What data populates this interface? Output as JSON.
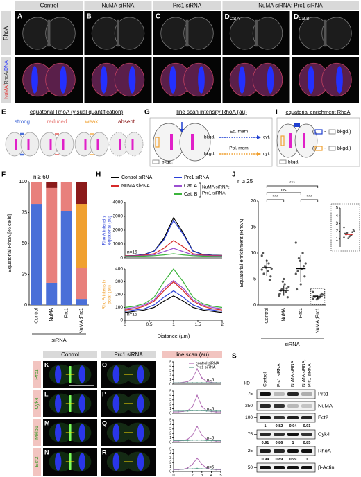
{
  "micrographs": {
    "columns": [
      {
        "letter": "A",
        "label": "Control"
      },
      {
        "letter": "B",
        "label": "NuMA siRNA"
      },
      {
        "letter": "C",
        "label": "Prc1 siRNA"
      },
      {
        "letter": "D",
        "sub": "Cat A"
      },
      {
        "letter": "D",
        "sub": "Cat B"
      }
    ],
    "group_label": "NuMA siRNA; Prc1 siRNA",
    "rows": [
      "RhoA",
      [
        "NuMA/",
        "RhoA/",
        "DNA"
      ]
    ]
  },
  "schemes": {
    "E": {
      "letter": "E",
      "title": "equatorial RhoA (visual quantification)"
    },
    "G": {
      "letter": "G",
      "title": "line scan intensity RhoA (au)",
      "labels": [
        "bkgd.",
        "Eq. mem",
        "cyt.",
        "bkgd.",
        "Pol. mem",
        "cyt.",
        "bkgd."
      ]
    },
    "I": {
      "letter": "I",
      "title": "equatorial enrichment RhoA",
      "labels": [
        "(",
        "- ",
        "bkgd.)",
        "(",
        "- ",
        "bkgd.)",
        "bkgd."
      ]
    }
  },
  "chart_data": [
    {
      "type": "bar",
      "letter": "F",
      "stacked": true,
      "annotation": "n ≥ 60",
      "ylabel": "Equatorial RhoA [% cells]",
      "xlabel": "siRNA",
      "categories": [
        "Control",
        "NuMA",
        "Prc1",
        "NuMA ;Prc1"
      ],
      "series": [
        {
          "name": "strong",
          "color": "#4a6fd8",
          "values": [
            82,
            18,
            76,
            5
          ]
        },
        {
          "name": "reduced",
          "color": "#e8807c",
          "values": [
            18,
            77,
            24,
            25
          ]
        },
        {
          "name": "weak",
          "color": "#f0a030",
          "values": [
            0,
            0,
            0,
            52
          ]
        },
        {
          "name": "absent",
          "color": "#8b1a1a",
          "values": [
            0,
            5,
            0,
            18
          ]
        }
      ],
      "ylim": [
        0,
        100
      ],
      "yticks": [
        0,
        25,
        50,
        75,
        100
      ]
    },
    {
      "type": "line",
      "letter": "H",
      "annotation": "n=15",
      "ylabel": [
        "Rho A intensity",
        "equatorial (au)"
      ],
      "group_label": [
        "NuMA siRNA;",
        "Prc1 siRNA"
      ],
      "x": [
        0,
        0.2,
        0.4,
        0.6,
        0.8,
        1,
        1.2,
        1.4,
        1.6,
        1.8,
        2
      ],
      "series": [
        {
          "name": "Control siRNA",
          "color": "#000000",
          "values": [
            150,
            170,
            250,
            500,
            1400,
            2900,
            1800,
            500,
            250,
            200,
            180
          ]
        },
        {
          "name": "Prc1 siRNA",
          "color": "#2a3fd6",
          "values": [
            150,
            170,
            240,
            480,
            1300,
            2700,
            1700,
            480,
            240,
            190,
            170
          ]
        },
        {
          "name": "NuMA siRNA",
          "color": "#d62a2a",
          "values": [
            150,
            160,
            200,
            300,
            700,
            1250,
            800,
            300,
            200,
            170,
            160
          ]
        },
        {
          "name": "Cat. A",
          "color": "#9b4fd0",
          "values": [
            120,
            130,
            160,
            220,
            450,
            700,
            450,
            220,
            160,
            140,
            130
          ]
        },
        {
          "name": "Cat. B",
          "color": "#3cb43c",
          "values": [
            100,
            110,
            130,
            160,
            220,
            300,
            220,
            160,
            130,
            110,
            100
          ]
        }
      ],
      "xlim": [
        0,
        2
      ],
      "ylim": [
        0,
        4000
      ],
      "yticks": [
        0,
        1000,
        2000,
        3000,
        4000
      ]
    },
    {
      "type": "line",
      "annotation": "n=15",
      "ylabel": [
        "Rho A intensity",
        "polar (au)"
      ],
      "xlabel": "Distance (µm)",
      "x": [
        0,
        0.2,
        0.4,
        0.6,
        0.8,
        1,
        1.2,
        1.4,
        1.6,
        1.8,
        2
      ],
      "series": [
        {
          "color": "#000000",
          "values": [
            60,
            70,
            80,
            100,
            150,
            190,
            150,
            100,
            80,
            70,
            60
          ]
        },
        {
          "color": "#2a3fd6",
          "values": [
            70,
            80,
            90,
            120,
            180,
            230,
            180,
            120,
            90,
            80,
            70
          ]
        },
        {
          "color": "#d62a2a",
          "values": [
            80,
            90,
            110,
            150,
            230,
            300,
            230,
            150,
            110,
            90,
            80
          ]
        },
        {
          "color": "#9b4fd0",
          "values": [
            90,
            100,
            120,
            160,
            250,
            310,
            250,
            160,
            120,
            100,
            90
          ]
        },
        {
          "color": "#3cb43c",
          "values": [
            100,
            110,
            130,
            180,
            300,
            400,
            300,
            180,
            130,
            110,
            100
          ]
        }
      ],
      "xlim": [
        0,
        2
      ],
      "xticks": [
        0,
        0.5,
        1,
        1.5,
        2
      ],
      "ylim": [
        0,
        400
      ],
      "yticks": [
        0,
        100,
        200,
        300,
        400
      ]
    },
    {
      "type": "dot",
      "letter": "J",
      "annotation": "n ≥ 25",
      "ylabel": "Equatorial enrichment (RhoA)",
      "xlabel": "siRNA",
      "categories": [
        "Control",
        "NuMA",
        "Prc1",
        "NuMA ;Prc1"
      ],
      "points": [
        [
          9.5,
          8,
          7.5,
          7,
          6.5,
          6,
          5.5,
          8.5,
          10,
          4.8,
          7.2,
          6.8
        ],
        [
          2,
          2.5,
          3,
          3.5,
          4,
          2.8,
          1.5,
          5,
          2.2,
          3.2,
          4.5,
          1.8
        ],
        [
          12,
          10,
          9,
          8,
          7,
          6.5,
          5.5,
          4,
          3,
          7.5,
          8.5,
          6
        ],
        [
          1.2,
          1.5,
          1.8,
          2,
          1.4,
          1.6,
          2.2,
          1.3,
          1.7,
          1.9,
          1.1,
          2.5
        ]
      ],
      "means": [
        7.2,
        2.8,
        7,
        1.6
      ],
      "sd": [
        1.6,
        1,
        2.6,
        0.4
      ],
      "significance": [
        "***",
        "ns",
        "***",
        "***"
      ],
      "ylim": [
        0,
        20
      ],
      "yticks": [
        0,
        5,
        10,
        15,
        20
      ]
    },
    {
      "type": "inset",
      "ylim": [
        0,
        5
      ],
      "yticks": [
        1,
        2,
        3,
        4,
        5
      ]
    },
    {
      "type": "line",
      "x": [
        0,
        0.5,
        1,
        1.5,
        2,
        2.5,
        3,
        3.5,
        4,
        4.5,
        5
      ],
      "annotation": "n=5",
      "series": [
        {
          "name": "control siRNA",
          "color": "#b06ab3",
          "values": [
            0.3,
            0.3,
            0.4,
            0.6,
            1.2,
            3.4,
            1.4,
            0.6,
            0.4,
            0.3,
            0.3
          ]
        },
        {
          "name": "Prc1 siRNA",
          "color": "#5f9c8c",
          "values": [
            0.3,
            0.3,
            0.3,
            0.3,
            0.3,
            0.3,
            0.3,
            0.3,
            0.3,
            0.3,
            0.3
          ]
        }
      ],
      "xlim": [
        0,
        5
      ],
      "ylim": [
        0,
        5
      ],
      "yticks": [
        0,
        1,
        2,
        3,
        4,
        5
      ]
    },
    {
      "type": "line",
      "x": [
        0,
        0.5,
        1,
        1.5,
        2,
        2.5,
        3,
        3.5,
        4,
        4.5,
        5
      ],
      "annotation": "n=5",
      "series": [
        {
          "color": "#b06ab3",
          "values": [
            0.3,
            0.3,
            0.4,
            0.6,
            1.5,
            4,
            1.5,
            0.6,
            0.4,
            0.3,
            0.3
          ]
        },
        {
          "color": "#5f9c8c",
          "values": [
            0.5,
            0.5,
            0.5,
            0.5,
            0.6,
            0.6,
            0.6,
            0.5,
            0.5,
            0.5,
            0.5
          ]
        }
      ],
      "xlim": [
        0,
        5
      ],
      "ylim": [
        0,
        5
      ],
      "yticks": [
        0,
        1,
        2,
        3,
        4,
        5
      ]
    },
    {
      "type": "line",
      "x": [
        0,
        0.5,
        1,
        1.5,
        2,
        2.5,
        3,
        3.5,
        4,
        4.5,
        5
      ],
      "annotation": "n=5",
      "series": [
        {
          "color": "#b06ab3",
          "values": [
            0.3,
            0.3,
            0.4,
            0.7,
            1.6,
            3.6,
            1.6,
            0.7,
            0.4,
            0.3,
            0.3
          ]
        },
        {
          "color": "#5f9c8c",
          "values": [
            0.4,
            0.4,
            0.4,
            0.4,
            0.5,
            0.5,
            0.5,
            0.4,
            0.4,
            0.4,
            0.4
          ]
        }
      ],
      "xlim": [
        0,
        5
      ],
      "ylim": [
        0,
        5
      ],
      "yticks": [
        0,
        1,
        2,
        3,
        4,
        5
      ]
    },
    {
      "type": "line",
      "x": [
        0,
        0.5,
        1,
        1.5,
        2,
        2.5,
        3,
        3.5,
        4,
        4.5,
        5
      ],
      "annotation": "n=5",
      "series": [
        {
          "color": "#b06ab3",
          "values": [
            0.4,
            0.4,
            0.5,
            0.8,
            1.6,
            3,
            1.6,
            0.8,
            0.5,
            0.4,
            0.4
          ]
        },
        {
          "color": "#5f9c8c",
          "values": [
            0.5,
            0.5,
            0.5,
            0.6,
            0.6,
            0.7,
            0.6,
            0.6,
            0.5,
            0.5,
            0.5
          ]
        }
      ],
      "xlim": [
        0,
        5
      ],
      "xticks": [
        0,
        1,
        2,
        3,
        4,
        5
      ],
      "ylim": [
        0,
        5
      ],
      "yticks": [
        0,
        1,
        2,
        3,
        4,
        5
      ]
    }
  ],
  "panel_KR": {
    "columns": [
      "Control",
      "Prc1 siRNA",
      "line scan (au)"
    ],
    "rows": [
      {
        "label": "Prc1",
        "letters": [
          "K",
          "O"
        ]
      },
      {
        "label": "Cyk4",
        "letters": [
          "L",
          "P"
        ]
      },
      {
        "label": "Mklp1",
        "letters": [
          "M",
          "Q"
        ]
      },
      {
        "label": "Ect2",
        "letters": [
          "N",
          "R"
        ]
      }
    ]
  },
  "blot": {
    "letter": "S",
    "unit": "kD",
    "lanes": [
      "Control",
      "Prc1 siRNA",
      "NuMA siRNA",
      [
        "NuMA siRNA;",
        "Prc1 siRNA"
      ]
    ],
    "rows": [
      {
        "protein": "Prc1",
        "marker": "75"
      },
      {
        "protein": "NuMA",
        "marker": "250"
      },
      {
        "protein": "Ect2",
        "marker": "100",
        "quant": [
          1,
          0.82,
          0.94,
          0.91
        ]
      },
      {
        "protein": "Cyk4",
        "marker": "75",
        "quant": [
          0.91,
          0.86,
          1,
          0.85
        ]
      },
      {
        "protein": "RhoA",
        "marker": "25",
        "quant": [
          0.94,
          0.89,
          0.99,
          1
        ]
      },
      {
        "protein": "β-Actin",
        "marker": "50"
      }
    ]
  }
}
